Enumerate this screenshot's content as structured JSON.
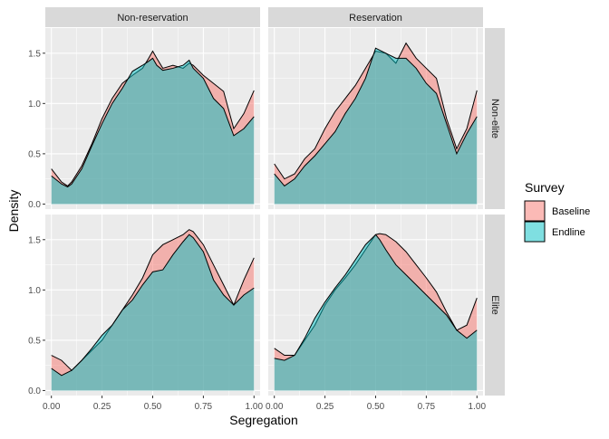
{
  "chart_data": {
    "type": "area",
    "xlabel": "Segregation",
    "ylabel": "Density",
    "x_ticks": [
      0.0,
      0.25,
      0.5,
      0.75,
      1.0
    ],
    "x_tick_labels": [
      "0.00",
      "0.25",
      "0.50",
      "0.75",
      "1.00"
    ],
    "y_ticks": [
      0.0,
      0.5,
      1.0,
      1.5
    ],
    "y_tick_labels": [
      "0.0",
      "0.5",
      "1.0",
      "1.5"
    ],
    "xlim": [
      -0.03,
      1.03
    ],
    "ylim": [
      -0.05,
      1.75
    ],
    "grid": true,
    "legend": {
      "title": "Survey",
      "position": "right",
      "entries": [
        {
          "name": "Baseline",
          "color": "#F8766D"
        },
        {
          "name": "Endline",
          "color": "#00BFC4"
        }
      ]
    },
    "facets": {
      "columns": [
        "Non-reservation",
        "Reservation"
      ],
      "rows": [
        "Non-elite",
        "Elite"
      ]
    },
    "panels": [
      {
        "col": "Non-reservation",
        "row": "Non-elite",
        "x": [
          0.0,
          0.05,
          0.08,
          0.1,
          0.15,
          0.2,
          0.25,
          0.3,
          0.35,
          0.4,
          0.45,
          0.48,
          0.5,
          0.52,
          0.55,
          0.6,
          0.65,
          0.68,
          0.7,
          0.75,
          0.8,
          0.85,
          0.9,
          0.95,
          1.0
        ],
        "series": [
          {
            "name": "Baseline",
            "values": [
              0.35,
              0.22,
              0.18,
              0.22,
              0.38,
              0.6,
              0.85,
              1.05,
              1.2,
              1.28,
              1.35,
              1.45,
              1.52,
              1.45,
              1.35,
              1.38,
              1.35,
              1.4,
              1.38,
              1.28,
              1.2,
              1.12,
              0.75,
              0.9,
              1.13
            ]
          },
          {
            "name": "Endline",
            "values": [
              0.28,
              0.2,
              0.17,
              0.2,
              0.35,
              0.58,
              0.8,
              1.0,
              1.15,
              1.32,
              1.38,
              1.42,
              1.45,
              1.38,
              1.33,
              1.35,
              1.38,
              1.43,
              1.35,
              1.25,
              1.05,
              0.95,
              0.68,
              0.75,
              0.87
            ]
          }
        ]
      },
      {
        "col": "Reservation",
        "row": "Non-elite",
        "x": [
          0.0,
          0.05,
          0.1,
          0.15,
          0.2,
          0.25,
          0.3,
          0.35,
          0.4,
          0.45,
          0.5,
          0.55,
          0.6,
          0.65,
          0.7,
          0.75,
          0.8,
          0.85,
          0.9,
          0.95,
          1.0
        ],
        "series": [
          {
            "name": "Baseline",
            "values": [
              0.4,
              0.25,
              0.3,
              0.45,
              0.55,
              0.75,
              0.92,
              1.05,
              1.18,
              1.35,
              1.52,
              1.5,
              1.4,
              1.6,
              1.45,
              1.35,
              1.25,
              0.85,
              0.55,
              0.75,
              1.13
            ]
          },
          {
            "name": "Endline",
            "values": [
              0.3,
              0.18,
              0.25,
              0.38,
              0.48,
              0.6,
              0.72,
              0.9,
              1.05,
              1.25,
              1.55,
              1.5,
              1.45,
              1.45,
              1.35,
              1.2,
              1.1,
              0.8,
              0.5,
              0.7,
              0.87
            ]
          }
        ]
      },
      {
        "col": "Non-reservation",
        "row": "Elite",
        "x": [
          0.0,
          0.05,
          0.1,
          0.15,
          0.2,
          0.25,
          0.3,
          0.35,
          0.4,
          0.45,
          0.5,
          0.55,
          0.6,
          0.65,
          0.68,
          0.7,
          0.75,
          0.8,
          0.85,
          0.9,
          0.95,
          1.0
        ],
        "series": [
          {
            "name": "Baseline",
            "values": [
              0.35,
              0.3,
              0.2,
              0.3,
              0.4,
              0.5,
              0.65,
              0.8,
              0.95,
              1.12,
              1.35,
              1.45,
              1.5,
              1.55,
              1.6,
              1.58,
              1.45,
              1.25,
              1.05,
              0.85,
              1.1,
              1.32
            ]
          },
          {
            "name": "Endline",
            "values": [
              0.22,
              0.15,
              0.2,
              0.3,
              0.42,
              0.55,
              0.65,
              0.8,
              0.9,
              1.05,
              1.18,
              1.2,
              1.35,
              1.48,
              1.55,
              1.52,
              1.38,
              1.1,
              0.95,
              0.85,
              0.95,
              1.02
            ]
          }
        ]
      },
      {
        "col": "Reservation",
        "row": "Elite",
        "x": [
          0.0,
          0.05,
          0.1,
          0.15,
          0.2,
          0.25,
          0.3,
          0.35,
          0.4,
          0.45,
          0.5,
          0.52,
          0.55,
          0.6,
          0.65,
          0.7,
          0.75,
          0.8,
          0.85,
          0.9,
          0.95,
          1.0
        ],
        "series": [
          {
            "name": "Baseline",
            "values": [
              0.42,
              0.35,
              0.35,
              0.5,
              0.65,
              0.85,
              1.0,
              1.12,
              1.25,
              1.4,
              1.55,
              1.56,
              1.55,
              1.48,
              1.38,
              1.25,
              1.12,
              0.98,
              0.78,
              0.6,
              0.65,
              0.92
            ]
          },
          {
            "name": "Endline",
            "values": [
              0.32,
              0.3,
              0.35,
              0.52,
              0.72,
              0.88,
              1.02,
              1.15,
              1.3,
              1.45,
              1.55,
              1.5,
              1.4,
              1.25,
              1.15,
              1.05,
              0.95,
              0.85,
              0.75,
              0.6,
              0.52,
              0.6
            ]
          }
        ]
      }
    ]
  }
}
